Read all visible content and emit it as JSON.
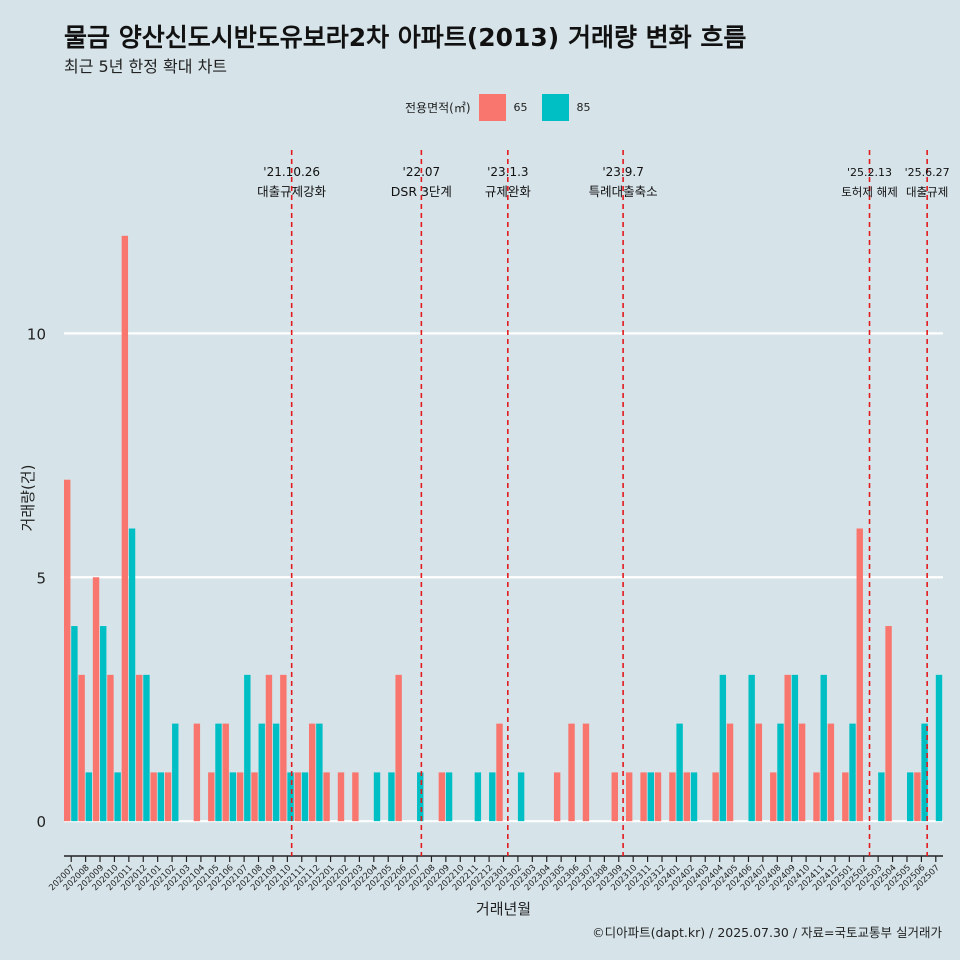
{
  "header": {
    "title": "물금 양산신도시반도유보라2차 아파트(2013) 거래량 변화 흐름",
    "subtitle": "최근 5년 한정 확대 차트"
  },
  "legend": {
    "title": "전용면적(㎡)",
    "items": [
      {
        "label": "65",
        "color": "#f8766d"
      },
      {
        "label": "85",
        "color": "#00bfc4"
      }
    ]
  },
  "caption": "©디아파트(dapt.kr) / 2025.07.30 / 자료=국토교통부 실거래가",
  "chart_data": {
    "type": "bar",
    "title": "물금 양산신도시반도유보라2차 아파트(2013) 거래량 변화 흐름",
    "xlabel": "거래년월",
    "ylabel": "거래량(건)",
    "ylim": [
      -0.55,
      13.8
    ],
    "yticks": [
      0,
      5,
      10
    ],
    "categories": [
      "202007",
      "202008",
      "202009",
      "202010",
      "202011",
      "202012",
      "202101",
      "202102",
      "202103",
      "202104",
      "202105",
      "202106",
      "202107",
      "202108",
      "202109",
      "202110",
      "202111",
      "202112",
      "202201",
      "202202",
      "202203",
      "202204",
      "202205",
      "202206",
      "202207",
      "202208",
      "202209",
      "202210",
      "202211",
      "202212",
      "202301",
      "202302",
      "202303",
      "202304",
      "202305",
      "202306",
      "202307",
      "202308",
      "202309",
      "202310",
      "202311",
      "202312",
      "202401",
      "202402",
      "202403",
      "202404",
      "202405",
      "202406",
      "202407",
      "202408",
      "202409",
      "202410",
      "202411",
      "202412",
      "202501",
      "202502",
      "202503",
      "202504",
      "202505",
      "202506",
      "202507"
    ],
    "series": [
      {
        "name": "65",
        "color": "#f8766d",
        "values": [
          7,
          3,
          5,
          3,
          12,
          3,
          1,
          1,
          0,
          2,
          1,
          2,
          1,
          1,
          3,
          3,
          1,
          2,
          1,
          1,
          1,
          0,
          0,
          3,
          0,
          0,
          1,
          0,
          0,
          0,
          2,
          0,
          0,
          0,
          1,
          2,
          2,
          0,
          1,
          1,
          1,
          1,
          1,
          1,
          0,
          1,
          2,
          0,
          2,
          1,
          3,
          2,
          1,
          2,
          1,
          6,
          0,
          4,
          0,
          1,
          0
        ]
      },
      {
        "name": "85",
        "color": "#00bfc4",
        "values": [
          4,
          1,
          4,
          1,
          6,
          3,
          1,
          2,
          0,
          0,
          2,
          1,
          3,
          2,
          2,
          1,
          1,
          2,
          0,
          0,
          0,
          1,
          1,
          0,
          1,
          0,
          1,
          0,
          1,
          1,
          0,
          1,
          0,
          0,
          0,
          0,
          0,
          0,
          0,
          0,
          1,
          0,
          2,
          1,
          0,
          3,
          0,
          3,
          0,
          2,
          3,
          0,
          3,
          0,
          2,
          0,
          1,
          0,
          1,
          2,
          3
        ]
      }
    ],
    "annotations": [
      {
        "date": "'21.10.26",
        "event": "대출규제강화",
        "position": 15.3
      },
      {
        "date": "'22.07",
        "event": "DSR 3단계",
        "position": 24.3
      },
      {
        "date": "'23.1.3",
        "event": "규제완화",
        "position": 30.3
      },
      {
        "date": "'23.9.7",
        "event": "특례대출축소",
        "position": 38.3
      },
      {
        "date": "'25.2.13",
        "event": "토허제 해제",
        "position": 55.4
      },
      {
        "date": "'25.6.27",
        "event": "대출규제",
        "position": 59.4
      }
    ]
  }
}
